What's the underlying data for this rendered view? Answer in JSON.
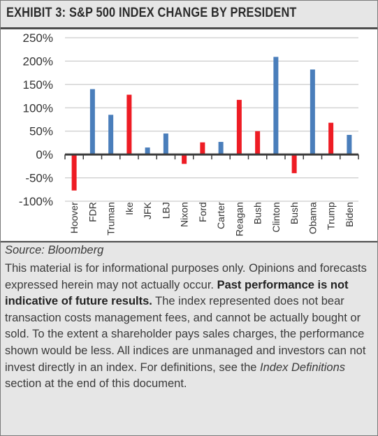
{
  "header": {
    "title": "EXHIBIT 3: S&P 500 INDEX CHANGE BY PRESIDENT"
  },
  "chart_data": {
    "type": "bar",
    "categories": [
      "Hoover",
      "FDR",
      "Truman",
      "Ike",
      "JFK",
      "LBJ",
      "Nixon",
      "Ford",
      "Carter",
      "Reagan",
      "Bush",
      "Clinton",
      "Bush",
      "Obama",
      "Trump",
      "Biden"
    ],
    "values": [
      -77,
      140,
      85,
      128,
      15,
      45,
      -20,
      26,
      27,
      117,
      50,
      209,
      -40,
      182,
      68,
      42
    ],
    "party_colors": [
      "#ee1c24",
      "#4a7ebb",
      "#4a7ebb",
      "#ee1c24",
      "#4a7ebb",
      "#4a7ebb",
      "#ee1c24",
      "#ee1c24",
      "#4a7ebb",
      "#ee1c24",
      "#ee1c24",
      "#4a7ebb",
      "#ee1c24",
      "#4a7ebb",
      "#ee1c24",
      "#4a7ebb"
    ],
    "yticks": [
      "250%",
      "200%",
      "150%",
      "100%",
      "50%",
      "0%",
      "-50%",
      "-100%"
    ],
    "ylim": [
      -100,
      250
    ],
    "grid": true,
    "title": "",
    "xlabel": "",
    "ylabel": ""
  },
  "source": {
    "text": "Source: Bloomberg"
  },
  "disclaimer": {
    "p1": "This material is for informational purposes only. Opinions and forecasts expressed herein may not actually occur. ",
    "bold": "Past performance is not indicative of future results.",
    "p2": " The index represented does not bear transaction costs management fees, and cannot be actually bought or sold. To the extent a shareholder pays sales charges, the performance shown would be less. All indices are unmanaged and investors can not invest directly in an index. For definitions, see the ",
    "italic": "Index Definitions",
    "p3": " section at the end of this document."
  }
}
